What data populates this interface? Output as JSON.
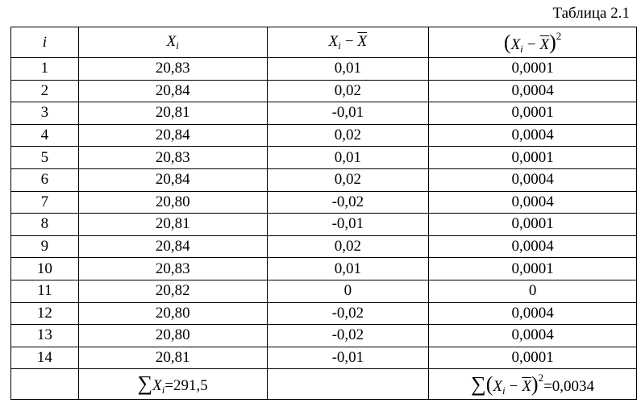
{
  "caption": "Таблица 2.1",
  "table": {
    "header": [
      [
        "i"
      ],
      [
        "X",
        "i"
      ],
      [
        "X",
        "i",
        "−",
        "X"
      ],
      [
        "(",
        "X",
        "i",
        "−",
        "X",
        ")",
        "2"
      ]
    ],
    "rows": [
      [
        "1",
        "20,83",
        "0,01",
        "0,0001"
      ],
      [
        "2",
        "20,84",
        "0,02",
        "0,0004"
      ],
      [
        "3",
        "20,81",
        "-0,01",
        "0,0001"
      ],
      [
        "4",
        "20,84",
        "0,02",
        "0,0004"
      ],
      [
        "5",
        "20,83",
        "0,01",
        "0,0001"
      ],
      [
        "6",
        "20,84",
        "0,02",
        "0,0004"
      ],
      [
        "7",
        "20,80",
        "-0,02",
        "0,0004"
      ],
      [
        "8",
        "20,81",
        "-0,01",
        "0,0001"
      ],
      [
        "9",
        "20,84",
        "0,02",
        "0,0004"
      ],
      [
        "10",
        "20,83",
        "0,01",
        "0,0001"
      ],
      [
        "11",
        "20,82",
        "0",
        "0"
      ],
      [
        "12",
        "20,80",
        "-0,02",
        "0,0004"
      ],
      [
        "13",
        "20,80",
        "-0,02",
        "0,0004"
      ],
      [
        "14",
        "20,81",
        "-0,01",
        "0,0001"
      ]
    ],
    "footer": [
      [
        "∑",
        "X",
        "i",
        "=291,5"
      ],
      [
        "∑",
        "(",
        "X",
        "i",
        "−",
        "X",
        ")",
        "2",
        "=0,0034"
      ]
    ]
  }
}
